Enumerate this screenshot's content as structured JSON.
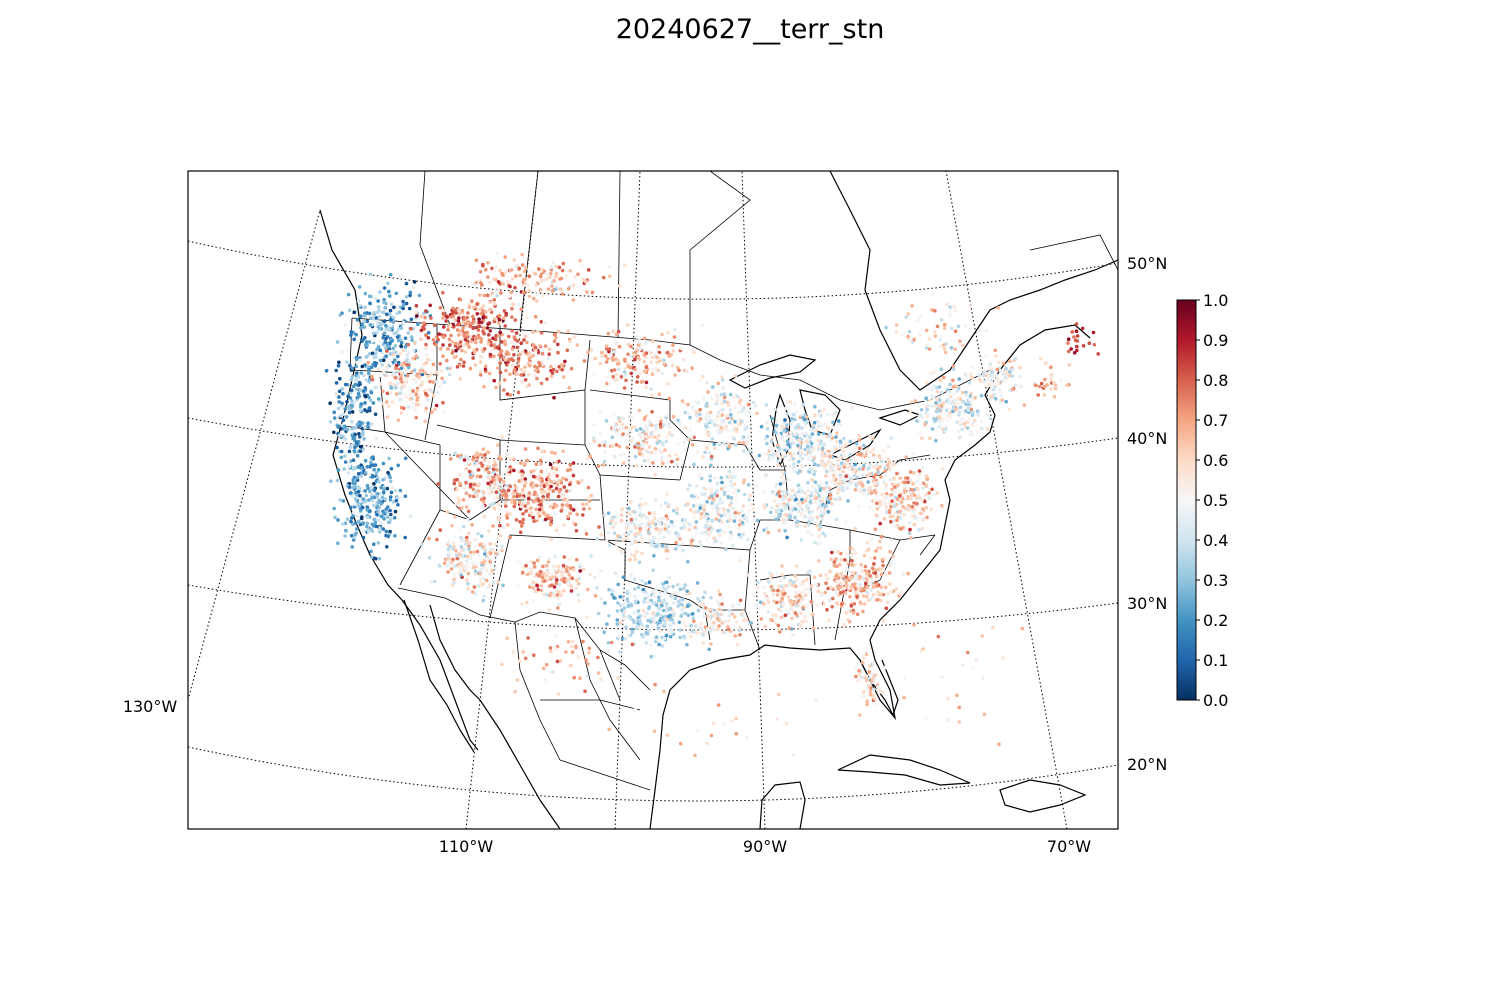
{
  "title": "20240627__terr_stn",
  "map": {
    "projection": "lambert-conformal",
    "extent_hint": "contiguous US with southern Canada, northern Mexico and Caribbean",
    "meridian_labels": [
      "130°W",
      "110°W",
      "90°W",
      "70°W"
    ],
    "parallel_labels": [
      "20°N",
      "30°N",
      "40°N",
      "50°N"
    ],
    "grid": "dotted"
  },
  "colorbar": {
    "cmap": "RdBu_r",
    "min": 0.0,
    "max": 1.0,
    "ticks": [
      "0.0",
      "0.1",
      "0.2",
      "0.3",
      "0.4",
      "0.5",
      "0.6",
      "0.7",
      "0.8",
      "0.9",
      "1.0"
    ],
    "colors": {
      "0.0": "#053061",
      "0.1": "#2166ac",
      "0.2": "#4393c3",
      "0.3": "#92c5de",
      "0.4": "#d1e5f0",
      "0.5": "#f7f7f7",
      "0.6": "#fddbc7",
      "0.7": "#f4a582",
      "0.8": "#d6604d",
      "0.9": "#b2182b",
      "1.0": "#67001f"
    }
  },
  "chart_data": {
    "type": "scatter",
    "title": "20240627__terr_stn",
    "value_range": [
      0.0,
      1.0
    ],
    "color_scale": "0.0 (dark blue) to 1.0 (dark red)",
    "regions": [
      {
        "region": "Pacific Northwest coast",
        "dominant": "low (blue)"
      },
      {
        "region": "California",
        "dominant": "low-mid (blue)"
      },
      {
        "region": "Northern Rockies / Montana",
        "dominant": "high (red)"
      },
      {
        "region": "Utah / Colorado / Four Corners",
        "dominant": "high (red)"
      },
      {
        "region": "Texas",
        "dominant": "mid-low (light blue)"
      },
      {
        "region": "Great Lakes / Midwest",
        "dominant": "mixed near 0.5"
      },
      {
        "region": "Southeast (Georgia / Carolinas)",
        "dominant": "mid-high (light red)"
      }
    ]
  }
}
